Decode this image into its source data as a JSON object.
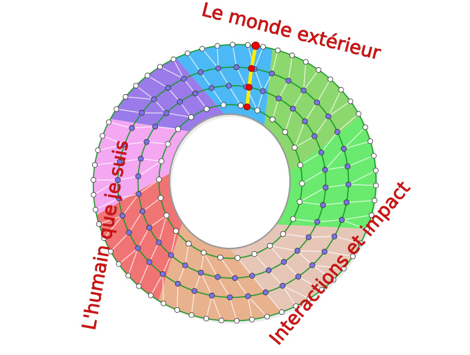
{
  "labels": {
    "top": "Le monde extérieur",
    "left": "L'humain que je suis",
    "bottom_right": "Interactions et impact"
  },
  "sectors": [
    {
      "name": "blue",
      "color": "#4cb8f5"
    },
    {
      "name": "light-green",
      "color": "#8cd86e"
    },
    {
      "name": "green",
      "color": "#6aea6e"
    },
    {
      "name": "light-peach",
      "color": "#e6c6b6"
    },
    {
      "name": "tan",
      "color": "#e8b28e"
    },
    {
      "name": "red",
      "color": "#f07474"
    },
    {
      "name": "pink",
      "color": "#f5a8f2"
    },
    {
      "name": "purple",
      "color": "#9a7be9"
    }
  ],
  "colors": {
    "ring_line": "#1a9a2a",
    "inner_dot": "#ffffff",
    "middle_dot": "#7b72e8",
    "highlight_dot": "#ee0000",
    "highlight_path": "#ffee00",
    "label": "#d41414"
  }
}
